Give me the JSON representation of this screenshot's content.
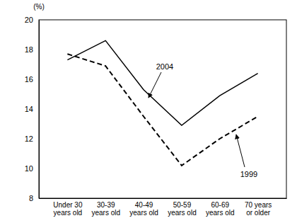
{
  "chart_data": {
    "type": "line",
    "y_label": "(%)",
    "categories": [
      "Under 30 years old",
      "30-39 years old",
      "40-49 years old",
      "50-59 years old",
      "60-69 years old",
      "70 years or older"
    ],
    "series": [
      {
        "name": "2004",
        "color": "#000000",
        "line_style": "solid",
        "values": [
          17.3,
          18.6,
          15.3,
          12.9,
          14.9,
          16.4
        ]
      },
      {
        "name": "1999",
        "color": "#000000",
        "line_style": "dashed",
        "values": [
          17.7,
          16.9,
          13.5,
          10.2,
          12.0,
          13.5
        ]
      }
    ],
    "ylim": [
      8,
      20
    ],
    "yticks": [
      8,
      10,
      12,
      14,
      16,
      18,
      20
    ],
    "grid": false
  }
}
